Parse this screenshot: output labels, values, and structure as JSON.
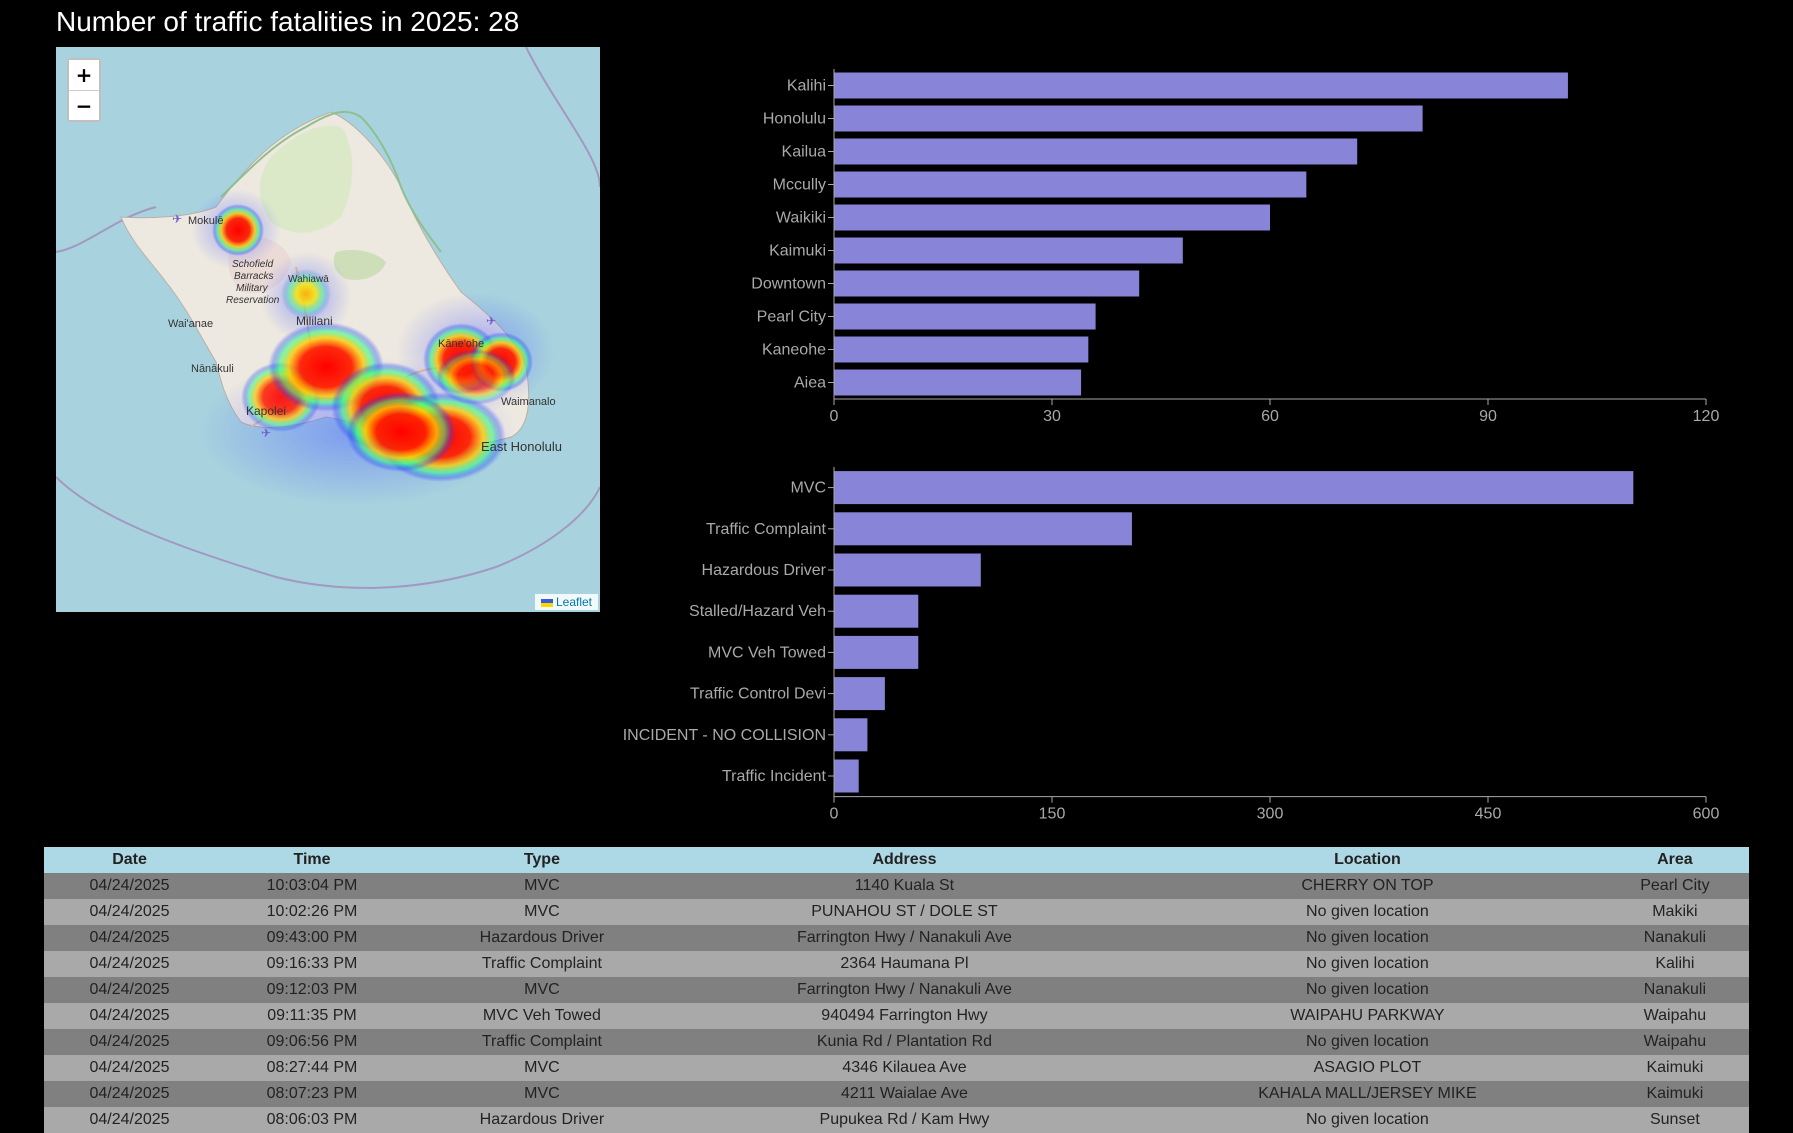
{
  "title": "Number of traffic fatalities in 2025: 28",
  "map": {
    "zoom_in_label": "+",
    "zoom_out_label": "−",
    "attribution": "Leaflet",
    "labels": [
      "Mokulē",
      "Schofield",
      "Barracks",
      "Military",
      "Reservation",
      "Wahiawā",
      "Mililani",
      "Wai'anae",
      "Nānākuli",
      "Kapolei",
      "Kāne'ohe",
      "Waimanalo",
      "East Honolulu"
    ]
  },
  "chart_data": [
    {
      "type": "bar",
      "orientation": "horizontal",
      "categories": [
        "Kalihi",
        "Honolulu",
        "Kailua",
        "Mccully",
        "Waikiki",
        "Kaimuki",
        "Downtown",
        "Pearl City",
        "Kaneohe",
        "Aiea"
      ],
      "values": [
        101,
        81,
        72,
        65,
        60,
        48,
        42,
        36,
        35,
        34
      ],
      "xlim": [
        0,
        120
      ],
      "ticks": [
        0,
        30,
        60,
        90,
        120
      ],
      "color": "#8884d8"
    },
    {
      "type": "bar",
      "orientation": "horizontal",
      "categories": [
        "MVC",
        "Traffic Complaint",
        "Hazardous Driver",
        "Stalled/Hazard Veh",
        "MVC Veh Towed",
        "Traffic Control Devi",
        "INCIDENT - NO COLLISION",
        "Traffic Incident"
      ],
      "values": [
        550,
        205,
        101,
        58,
        58,
        35,
        23,
        17
      ],
      "xlim": [
        0,
        600
      ],
      "ticks": [
        0,
        150,
        300,
        450,
        600
      ],
      "color": "#8884d8"
    }
  ],
  "table": {
    "headers": [
      "Date",
      "Time",
      "Type",
      "Address",
      "Location",
      "Area"
    ],
    "rows": [
      [
        "04/24/2025",
        "10:03:04 PM",
        "MVC",
        "1140 Kuala St",
        "CHERRY ON TOP",
        "Pearl City"
      ],
      [
        "04/24/2025",
        "10:02:26 PM",
        "MVC",
        "PUNAHOU ST / DOLE ST",
        "No given location",
        "Makiki"
      ],
      [
        "04/24/2025",
        "09:43:00 PM",
        "Hazardous Driver",
        "Farrington Hwy / Nanakuli Ave",
        "No given location",
        "Nanakuli"
      ],
      [
        "04/24/2025",
        "09:16:33 PM",
        "Traffic Complaint",
        "2364 Haumana Pl",
        "No given location",
        "Kalihi"
      ],
      [
        "04/24/2025",
        "09:12:03 PM",
        "MVC",
        "Farrington Hwy / Nanakuli Ave",
        "No given location",
        "Nanakuli"
      ],
      [
        "04/24/2025",
        "09:11:35 PM",
        "MVC Veh Towed",
        "940494 Farrington Hwy",
        "WAIPAHU PARKWAY",
        "Waipahu"
      ],
      [
        "04/24/2025",
        "09:06:56 PM",
        "Traffic Complaint",
        "Kunia Rd / Plantation Rd",
        "No given location",
        "Waipahu"
      ],
      [
        "04/24/2025",
        "08:27:44 PM",
        "MVC",
        "4346 Kilauea Ave",
        "ASAGIO PLOT",
        "Kaimuki"
      ],
      [
        "04/24/2025",
        "08:07:23 PM",
        "MVC",
        "4211 Waialae Ave",
        "KAHALA MALL/JERSEY MIKE",
        "Kaimuki"
      ],
      [
        "04/24/2025",
        "08:06:03 PM",
        "Hazardous Driver",
        "Pupukea Rd / Kam Hwy",
        "No given location",
        "Sunset"
      ]
    ]
  }
}
